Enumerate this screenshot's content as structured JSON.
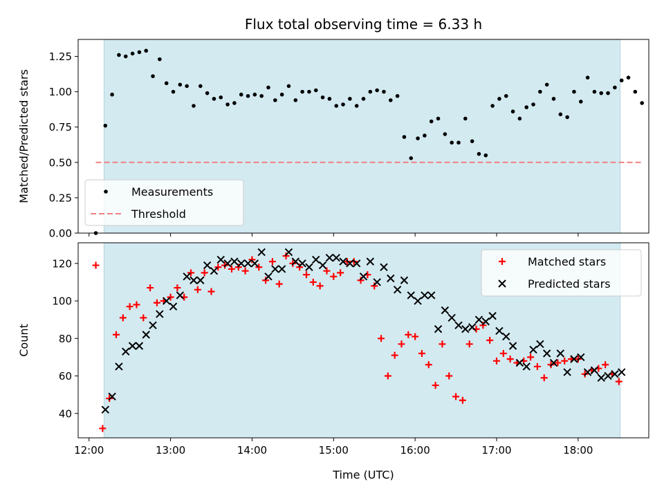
{
  "chart_data": [
    {
      "type": "scatter",
      "title": "Flux total observing time = 6.33 h",
      "xlabel": "",
      "ylabel": "Matched/Predicted stars",
      "x_is_time": true,
      "xlim": [
        "11:52",
        "18:52"
      ],
      "ylim": [
        0,
        1.37
      ],
      "yticks": [
        "0.00",
        "0.25",
        "0.50",
        "0.75",
        "1.00",
        "1.25"
      ],
      "shaded_region": [
        "12:11",
        "18:31"
      ],
      "shade_color": "#d3eaf1",
      "legend_position": "lower-left",
      "series": [
        {
          "name": "Measurements",
          "marker": "dot",
          "color": "#000000",
          "points": [
            [
              "12:05",
              0.0
            ],
            [
              "12:12",
              0.76
            ],
            [
              "12:17",
              0.98
            ],
            [
              "12:22",
              1.26
            ],
            [
              "12:27",
              1.25
            ],
            [
              "12:32",
              1.27
            ],
            [
              "12:37",
              1.28
            ],
            [
              "12:42",
              1.29
            ],
            [
              "12:47",
              1.11
            ],
            [
              "12:52",
              1.23
            ],
            [
              "12:57",
              1.06
            ],
            [
              "13:02",
              1.0
            ],
            [
              "13:07",
              1.05
            ],
            [
              "13:12",
              1.04
            ],
            [
              "13:17",
              0.9
            ],
            [
              "13:22",
              1.04
            ],
            [
              "13:27",
              0.99
            ],
            [
              "13:32",
              0.95
            ],
            [
              "13:37",
              0.96
            ],
            [
              "13:42",
              0.91
            ],
            [
              "13:47",
              0.92
            ],
            [
              "13:52",
              0.98
            ],
            [
              "13:57",
              0.97
            ],
            [
              "14:02",
              0.98
            ],
            [
              "14:07",
              0.97
            ],
            [
              "14:12",
              1.03
            ],
            [
              "14:17",
              0.94
            ],
            [
              "14:22",
              0.98
            ],
            [
              "14:27",
              1.04
            ],
            [
              "14:32",
              0.94
            ],
            [
              "14:37",
              1.0
            ],
            [
              "14:42",
              1.0
            ],
            [
              "14:47",
              1.01
            ],
            [
              "14:52",
              0.96
            ],
            [
              "14:57",
              0.95
            ],
            [
              "15:02",
              0.9
            ],
            [
              "15:07",
              0.91
            ],
            [
              "15:12",
              0.95
            ],
            [
              "15:17",
              0.9
            ],
            [
              "15:22",
              0.95
            ],
            [
              "15:27",
              1.0
            ],
            [
              "15:32",
              1.01
            ],
            [
              "15:37",
              1.0
            ],
            [
              "15:42",
              0.94
            ],
            [
              "15:47",
              0.97
            ],
            [
              "15:52",
              0.68
            ],
            [
              "15:57",
              0.53
            ],
            [
              "16:02",
              0.67
            ],
            [
              "16:07",
              0.69
            ],
            [
              "16:12",
              0.79
            ],
            [
              "16:17",
              0.81
            ],
            [
              "16:22",
              0.7
            ],
            [
              "16:27",
              0.64
            ],
            [
              "16:32",
              0.64
            ],
            [
              "16:37",
              0.81
            ],
            [
              "16:42",
              0.65
            ],
            [
              "16:47",
              0.56
            ],
            [
              "16:52",
              0.55
            ],
            [
              "16:57",
              0.9
            ],
            [
              "17:02",
              0.95
            ],
            [
              "17:07",
              0.97
            ],
            [
              "17:12",
              0.86
            ],
            [
              "17:17",
              0.81
            ],
            [
              "17:22",
              0.89
            ],
            [
              "17:27",
              0.91
            ],
            [
              "17:32",
              1.0
            ],
            [
              "17:37",
              1.05
            ],
            [
              "17:42",
              0.95
            ],
            [
              "17:47",
              0.84
            ],
            [
              "17:52",
              0.82
            ],
            [
              "17:57",
              1.0
            ],
            [
              "18:02",
              0.93
            ],
            [
              "18:07",
              1.1
            ],
            [
              "18:12",
              1.0
            ],
            [
              "18:17",
              0.99
            ],
            [
              "18:22",
              0.99
            ],
            [
              "18:27",
              1.03
            ],
            [
              "18:32",
              1.08
            ],
            [
              "18:37",
              1.1
            ],
            [
              "18:42",
              1.0
            ],
            [
              "18:47",
              0.92
            ]
          ]
        },
        {
          "name": "Threshold",
          "marker": "dashed-line",
          "color": "#f08080",
          "points": [
            [
              "12:05",
              0.5
            ],
            [
              "18:47",
              0.5
            ]
          ]
        }
      ]
    },
    {
      "type": "scatter",
      "title": "",
      "xlabel": "Time (UTC)",
      "ylabel": "Count",
      "x_is_time": true,
      "xlim": [
        "11:52",
        "18:52"
      ],
      "ylim": [
        27,
        131
      ],
      "yticks": [
        "40",
        "60",
        "80",
        "100",
        "120"
      ],
      "xticks": [
        "12:00",
        "13:00",
        "14:00",
        "15:00",
        "16:00",
        "17:00",
        "18:00"
      ],
      "shaded_region": [
        "12:11",
        "18:31"
      ],
      "shade_color": "#d3eaf1",
      "legend_position": "upper-right",
      "series": [
        {
          "name": "Matched stars",
          "marker": "plus",
          "color": "#ff0000",
          "points": [
            [
              "12:05",
              119
            ],
            [
              "12:10",
              32
            ],
            [
              "12:15",
              48
            ],
            [
              "12:20",
              82
            ],
            [
              "12:25",
              91
            ],
            [
              "12:30",
              97
            ],
            [
              "12:35",
              98
            ],
            [
              "12:40",
              91
            ],
            [
              "12:45",
              107
            ],
            [
              "12:50",
              99
            ],
            [
              "12:55",
              100
            ],
            [
              "13:00",
              102
            ],
            [
              "13:05",
              107
            ],
            [
              "13:10",
              102
            ],
            [
              "13:15",
              115
            ],
            [
              "13:20",
              106
            ],
            [
              "13:25",
              115
            ],
            [
              "13:30",
              105
            ],
            [
              "13:35",
              118
            ],
            [
              "13:40",
              119
            ],
            [
              "13:45",
              117
            ],
            [
              "13:50",
              118
            ],
            [
              "13:55",
              116
            ],
            [
              "14:00",
              122
            ],
            [
              "14:05",
              118
            ],
            [
              "14:10",
              111
            ],
            [
              "14:15",
              121
            ],
            [
              "14:20",
              109
            ],
            [
              "14:25",
              124
            ],
            [
              "14:30",
              120
            ],
            [
              "14:35",
              118
            ],
            [
              "14:40",
              114
            ],
            [
              "14:45",
              110
            ],
            [
              "14:50",
              108
            ],
            [
              "14:55",
              116
            ],
            [
              "15:00",
              113
            ],
            [
              "15:05",
              115
            ],
            [
              "15:10",
              121
            ],
            [
              "15:15",
              121
            ],
            [
              "15:20",
              111
            ],
            [
              "15:25",
              114
            ],
            [
              "15:30",
              108
            ],
            [
              "15:35",
              80
            ],
            [
              "15:40",
              60
            ],
            [
              "15:45",
              71
            ],
            [
              "15:50",
              77
            ],
            [
              "15:55",
              82
            ],
            [
              "16:00",
              81
            ],
            [
              "16:05",
              72
            ],
            [
              "16:10",
              66
            ],
            [
              "16:15",
              55
            ],
            [
              "16:20",
              77
            ],
            [
              "16:25",
              60
            ],
            [
              "16:30",
              49
            ],
            [
              "16:35",
              47
            ],
            [
              "16:40",
              77
            ],
            [
              "16:45",
              85
            ],
            [
              "16:50",
              87
            ],
            [
              "16:55",
              79
            ],
            [
              "17:00",
              68
            ],
            [
              "17:05",
              72
            ],
            [
              "17:10",
              69
            ],
            [
              "17:15",
              67
            ],
            [
              "17:20",
              68
            ],
            [
              "17:25",
              70
            ],
            [
              "17:30",
              65
            ],
            [
              "17:35",
              59
            ],
            [
              "17:40",
              66
            ],
            [
              "17:45",
              67
            ],
            [
              "17:50",
              68
            ],
            [
              "17:55",
              69
            ],
            [
              "18:00",
              69
            ],
            [
              "18:05",
              61
            ],
            [
              "18:10",
              63
            ],
            [
              "18:15",
              64
            ],
            [
              "18:20",
              66
            ],
            [
              "18:25",
              61
            ],
            [
              "18:30",
              57
            ]
          ]
        },
        {
          "name": "Predicted stars",
          "marker": "x",
          "color": "#000000",
          "points": [
            [
              "12:12",
              42
            ],
            [
              "12:17",
              49
            ],
            [
              "12:22",
              65
            ],
            [
              "12:27",
              73
            ],
            [
              "12:32",
              76
            ],
            [
              "12:37",
              76
            ],
            [
              "12:42",
              82
            ],
            [
              "12:47",
              87
            ],
            [
              "12:52",
              93
            ],
            [
              "12:57",
              100
            ],
            [
              "13:02",
              97
            ],
            [
              "13:07",
              103
            ],
            [
              "13:12",
              113
            ],
            [
              "13:17",
              111
            ],
            [
              "13:22",
              111
            ],
            [
              "13:27",
              119
            ],
            [
              "13:32",
              116
            ],
            [
              "13:37",
              122
            ],
            [
              "13:42",
              120
            ],
            [
              "13:47",
              121
            ],
            [
              "13:52",
              120
            ],
            [
              "13:57",
              120
            ],
            [
              "14:02",
              120
            ],
            [
              "14:07",
              126
            ],
            [
              "14:12",
              113
            ],
            [
              "14:17",
              117
            ],
            [
              "14:22",
              117
            ],
            [
              "14:27",
              126
            ],
            [
              "14:32",
              121
            ],
            [
              "14:37",
              120
            ],
            [
              "14:42",
              118
            ],
            [
              "14:47",
              122
            ],
            [
              "14:52",
              119
            ],
            [
              "14:57",
              123
            ],
            [
              "15:02",
              123
            ],
            [
              "15:07",
              121
            ],
            [
              "15:12",
              120
            ],
            [
              "15:17",
              120
            ],
            [
              "15:22",
              113
            ],
            [
              "15:27",
              121
            ],
            [
              "15:32",
              110
            ],
            [
              "15:37",
              118
            ],
            [
              "15:42",
              112
            ],
            [
              "15:47",
              106
            ],
            [
              "15:52",
              111
            ],
            [
              "15:57",
              103
            ],
            [
              "16:02",
              100
            ],
            [
              "16:07",
              103
            ],
            [
              "16:12",
              103
            ],
            [
              "16:17",
              85
            ],
            [
              "16:22",
              95
            ],
            [
              "16:27",
              91
            ],
            [
              "16:32",
              87
            ],
            [
              "16:37",
              85
            ],
            [
              "16:42",
              86
            ],
            [
              "16:47",
              90
            ],
            [
              "16:52",
              89
            ],
            [
              "16:57",
              92
            ],
            [
              "17:02",
              84
            ],
            [
              "17:07",
              81
            ],
            [
              "17:12",
              76
            ],
            [
              "17:17",
              67
            ],
            [
              "17:22",
              65
            ],
            [
              "17:27",
              74
            ],
            [
              "17:32",
              77
            ],
            [
              "17:37",
              72
            ],
            [
              "17:42",
              67
            ],
            [
              "17:47",
              72
            ],
            [
              "17:52",
              62
            ],
            [
              "17:57",
              69
            ],
            [
              "18:02",
              70
            ],
            [
              "18:07",
              62
            ],
            [
              "18:12",
              63
            ],
            [
              "18:17",
              59
            ],
            [
              "18:22",
              60
            ],
            [
              "18:27",
              61
            ],
            [
              "18:32",
              62
            ]
          ]
        }
      ]
    }
  ]
}
